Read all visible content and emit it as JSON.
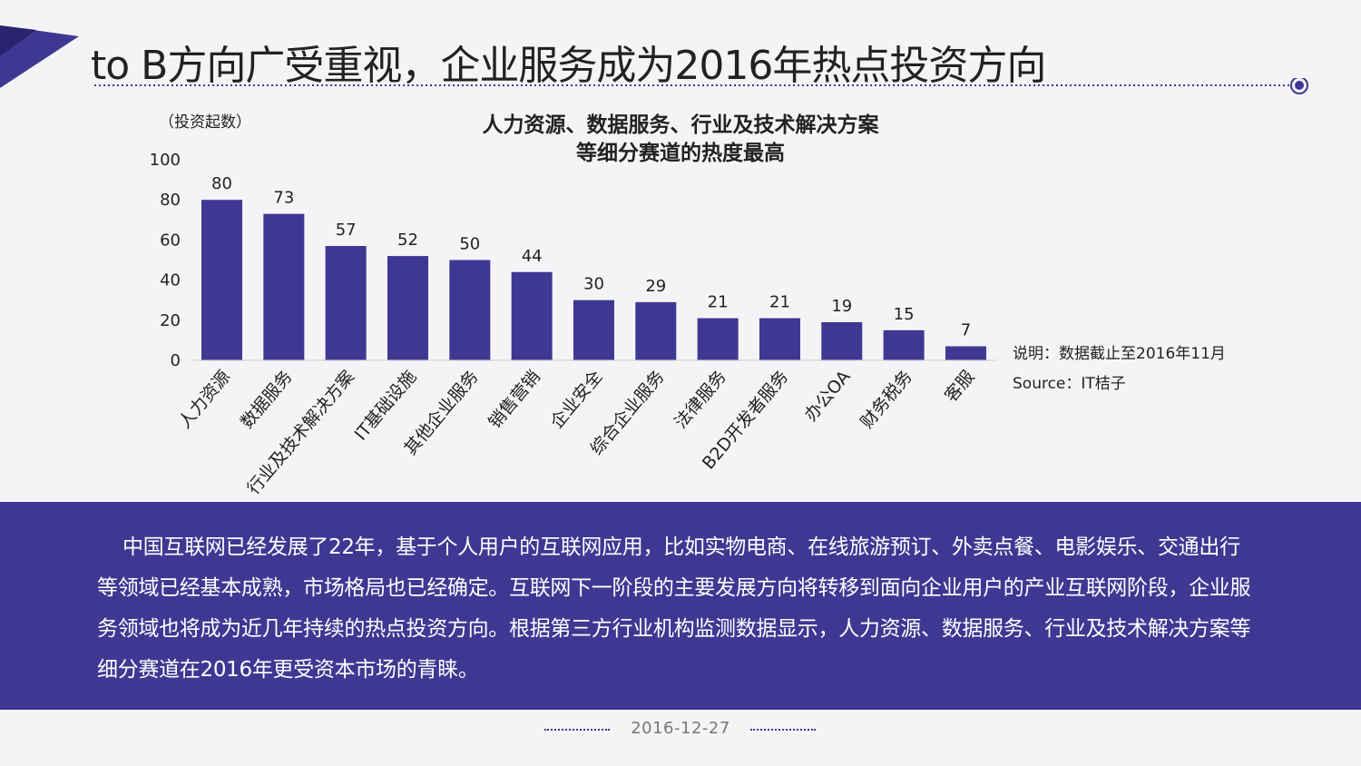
{
  "page": {
    "title": "to B方向广受重视，企业服务成为2016年热点投资方向",
    "accent_color": "#3f3893",
    "date": "2016-12-27"
  },
  "chart_data": {
    "type": "bar",
    "title": "人力资源、数据服务、行业及技术解决方案",
    "subtitle": "等细分赛道的热度最高",
    "ylabel": "（投资起数）",
    "xlabel": "",
    "ylim": [
      0,
      100
    ],
    "yticks": [
      0,
      20,
      40,
      60,
      80,
      100
    ],
    "grid": false,
    "bar_color": "#3f3893",
    "categories": [
      "人力资源",
      "数据服务",
      "行业及技术解决方案",
      "IT基础设施",
      "其他企业服务",
      "销售营销",
      "企业安全",
      "综合企业服务",
      "法律服务",
      "B2D开发者服务",
      "办公OA",
      "财务税务",
      "客服"
    ],
    "values": [
      80,
      73,
      57,
      52,
      50,
      44,
      30,
      29,
      21,
      21,
      19,
      15,
      7
    ]
  },
  "notes": {
    "explanation": "说明：数据截止至2016年11月",
    "source": "Source：IT桔子"
  },
  "summary": {
    "text": "中国互联网已经发展了22年，基于个人用户的互联网应用，比如实物电商、在线旅游预订、外卖点餐、电影娱乐、交通出行等领域已经基本成熟，市场格局也已经确定。互联网下一阶段的主要发展方向将转移到面向企业用户的产业互联网阶段，企业服务领域也将成为近几年持续的热点投资方向。根据第三方行业机构监测数据显示，人力资源、数据服务、行业及技术解决方案等细分赛道在2016年更受资本市场的青睐。"
  }
}
